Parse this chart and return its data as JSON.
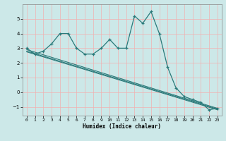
{
  "xlabel": "Humidex (Indice chaleur)",
  "bg_color": "#cce8e8",
  "grid_color": "#f0b0b0",
  "line_color": "#2a7a7a",
  "xlim": [
    -0.5,
    23.5
  ],
  "ylim": [
    -1.6,
    6.0
  ],
  "yticks": [
    -1,
    0,
    1,
    2,
    3,
    4,
    5
  ],
  "xticks": [
    0,
    1,
    2,
    3,
    4,
    5,
    6,
    7,
    8,
    9,
    10,
    11,
    12,
    13,
    14,
    15,
    16,
    17,
    18,
    19,
    20,
    21,
    22,
    23
  ],
  "curve1_x": [
    0,
    1,
    2,
    3,
    4,
    5,
    6,
    7,
    8,
    9,
    10,
    11,
    12,
    13,
    14,
    15,
    16,
    17,
    18,
    19,
    20,
    21,
    22,
    23
  ],
  "curve1_y": [
    3.0,
    2.6,
    2.8,
    3.3,
    4.0,
    4.0,
    3.0,
    2.6,
    2.6,
    3.0,
    3.6,
    3.0,
    3.0,
    5.2,
    4.7,
    5.5,
    4.0,
    1.7,
    0.3,
    -0.3,
    -0.5,
    -0.7,
    -1.2,
    -1.1
  ],
  "line2_x": [
    0,
    23
  ],
  "line2_y": [
    2.9,
    -1.1
  ],
  "line3_x": [
    0,
    23
  ],
  "line3_y": [
    2.8,
    -1.15
  ],
  "line4_x": [
    0,
    23
  ],
  "line4_y": [
    2.75,
    -1.2
  ]
}
